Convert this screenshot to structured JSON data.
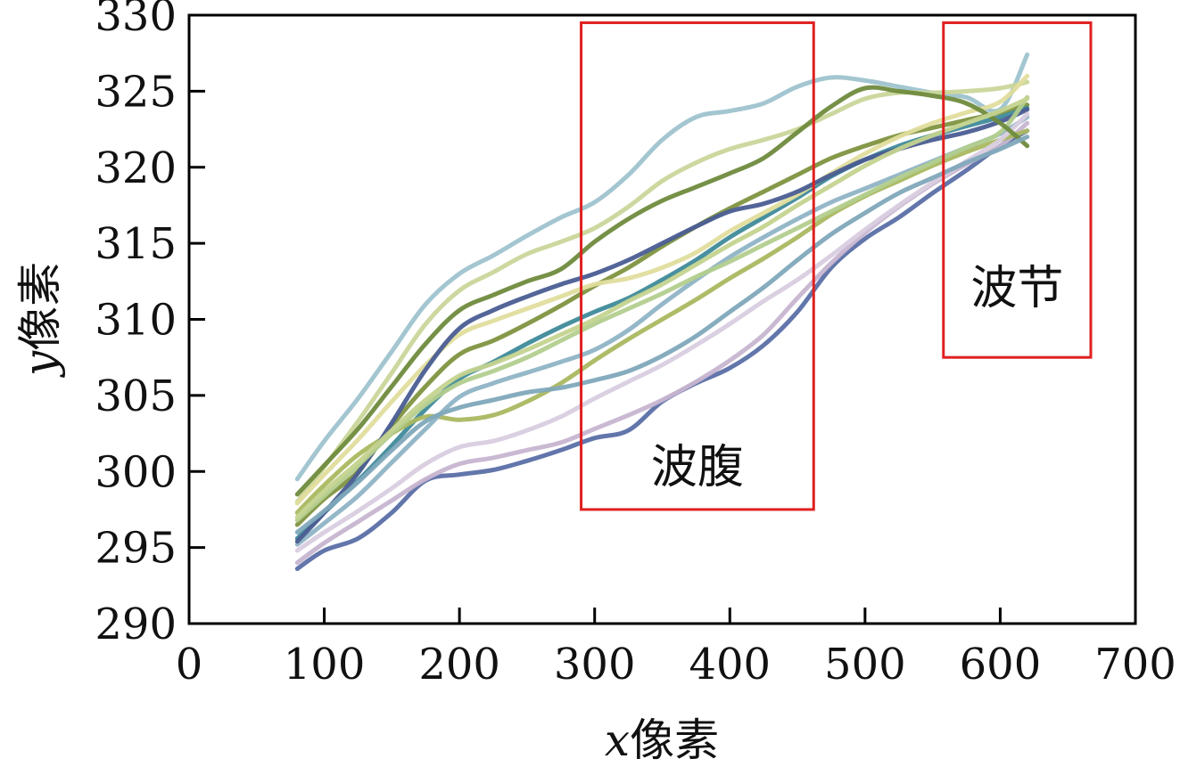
{
  "chart_data": {
    "type": "line",
    "title": "",
    "xlabel": {
      "symbol": "x",
      "text": "像素"
    },
    "ylabel": {
      "symbol": "y",
      "text": "像素"
    },
    "xlim": [
      0,
      700
    ],
    "ylim": [
      290,
      330
    ],
    "xticks": [
      0,
      100,
      200,
      300,
      400,
      500,
      600,
      700
    ],
    "yticks": [
      290,
      295,
      300,
      305,
      310,
      315,
      320,
      325,
      330
    ],
    "grid": false,
    "legend": "none",
    "x": [
      80,
      100,
      125,
      150,
      175,
      200,
      225,
      250,
      275,
      300,
      325,
      350,
      375,
      400,
      425,
      450,
      475,
      500,
      525,
      550,
      575,
      600,
      620
    ],
    "series": [
      {
        "color": "#9ec3cf",
        "values": [
          299.5,
          302.0,
          304.8,
          307.9,
          311.0,
          313.0,
          314.2,
          315.5,
          316.7,
          317.7,
          319.5,
          321.8,
          323.3,
          323.7,
          324.2,
          325.3,
          325.9,
          325.7,
          325.3,
          324.9,
          324.6,
          323.8,
          327.4
        ]
      },
      {
        "color": "#5a6fa6",
        "values": [
          293.6,
          294.8,
          295.6,
          297.3,
          299.4,
          299.8,
          300.1,
          300.7,
          301.4,
          302.2,
          302.7,
          304.6,
          305.8,
          306.8,
          308.3,
          310.5,
          313.4,
          315.3,
          316.7,
          318.3,
          319.8,
          321.4,
          322.4
        ]
      },
      {
        "color": "#7f9440",
        "values": [
          296.5,
          298.2,
          300.0,
          303.0,
          305.6,
          307.7,
          308.6,
          309.7,
          310.9,
          312.2,
          313.4,
          314.8,
          316.1,
          317.3,
          318.4,
          319.5,
          320.6,
          321.4,
          322.1,
          322.6,
          323.1,
          323.6,
          324.1
        ]
      },
      {
        "color": "#c9d69a",
        "values": [
          298.0,
          300.3,
          303.3,
          306.5,
          309.7,
          311.9,
          313.1,
          314.3,
          315.1,
          316.0,
          317.4,
          319.1,
          320.3,
          321.2,
          321.8,
          322.5,
          323.5,
          324.5,
          324.9,
          324.9,
          325.0,
          325.2,
          325.6
        ]
      },
      {
        "color": "#c7b5d0",
        "values": [
          294.0,
          295.3,
          296.7,
          298.1,
          299.5,
          300.5,
          300.9,
          301.4,
          301.9,
          302.8,
          303.7,
          304.7,
          305.9,
          307.3,
          309.0,
          311.4,
          313.7,
          315.7,
          317.4,
          318.9,
          320.2,
          321.4,
          322.9
        ]
      },
      {
        "color": "#3f8a9a",
        "values": [
          295.6,
          297.3,
          299.4,
          301.7,
          304.1,
          306.1,
          307.2,
          308.4,
          309.5,
          310.5,
          311.4,
          312.6,
          313.9,
          315.4,
          316.7,
          318.0,
          319.4,
          320.5,
          321.4,
          322.1,
          322.7,
          323.3,
          323.9
        ]
      },
      {
        "color": "#aab860",
        "values": [
          297.3,
          299.1,
          301.1,
          302.5,
          303.6,
          303.4,
          303.7,
          304.6,
          305.8,
          307.3,
          308.7,
          310.0,
          311.3,
          312.7,
          314.0,
          315.4,
          316.9,
          318.1,
          319.1,
          320.1,
          321.0,
          321.8,
          322.4
        ]
      },
      {
        "color": "#8fb4c6",
        "values": [
          295.2,
          296.6,
          298.4,
          300.6,
          302.8,
          304.9,
          305.8,
          306.5,
          307.2,
          308.0,
          309.3,
          311.0,
          312.6,
          314.1,
          315.4,
          316.6,
          317.7,
          318.6,
          319.5,
          320.4,
          321.3,
          322.2,
          323.3
        ]
      },
      {
        "color": "#e0dd9d",
        "values": [
          297.9,
          299.8,
          302.1,
          304.6,
          307.0,
          309.0,
          309.9,
          310.7,
          311.5,
          312.3,
          312.7,
          313.4,
          314.4,
          315.8,
          317.0,
          318.2,
          319.6,
          320.9,
          322.0,
          322.9,
          323.6,
          324.3,
          326.0
        ]
      },
      {
        "color": "#4a5d92",
        "values": [
          295.4,
          297.3,
          299.9,
          303.2,
          306.7,
          309.4,
          310.6,
          311.5,
          312.3,
          313.0,
          313.9,
          315.0,
          316.1,
          317.1,
          317.6,
          318.4,
          319.5,
          320.5,
          321.2,
          321.8,
          322.3,
          323.0,
          323.8
        ]
      },
      {
        "color": "#b3cd8e",
        "values": [
          296.8,
          298.4,
          300.4,
          302.5,
          304.4,
          305.8,
          306.6,
          307.5,
          308.6,
          309.7,
          310.7,
          311.7,
          312.8,
          313.8,
          314.9,
          316.0,
          317.1,
          318.2,
          319.3,
          320.3,
          321.3,
          322.3,
          324.6
        ]
      },
      {
        "color": "#d9cee0",
        "values": [
          294.8,
          296.0,
          297.4,
          298.9,
          300.5,
          301.6,
          302.0,
          302.7,
          303.6,
          304.8,
          305.9,
          307.0,
          308.3,
          309.7,
          311.2,
          312.6,
          314.2,
          315.9,
          317.5,
          319.0,
          320.4,
          321.8,
          323.5
        ]
      },
      {
        "color": "#6f8b3d",
        "values": [
          298.5,
          300.4,
          302.8,
          305.6,
          308.4,
          310.6,
          311.6,
          312.5,
          313.3,
          315.1,
          316.6,
          317.8,
          318.7,
          319.6,
          320.6,
          322.3,
          324.0,
          325.2,
          325.0,
          324.7,
          324.2,
          322.9,
          321.4
        ]
      },
      {
        "color": "#7fa8bb",
        "values": [
          296.0,
          297.4,
          299.3,
          301.4,
          303.3,
          304.2,
          304.7,
          305.2,
          305.5,
          306.0,
          306.6,
          307.6,
          308.9,
          310.5,
          312.1,
          313.9,
          315.6,
          317.0,
          318.3,
          319.3,
          320.3,
          321.2,
          322.0
        ]
      },
      {
        "color": "#c4d38f",
        "values": [
          297.0,
          298.7,
          300.6,
          302.7,
          304.7,
          306.3,
          307.1,
          308.0,
          309.0,
          310.0,
          311.2,
          312.3,
          313.6,
          314.9,
          316.1,
          317.5,
          318.8,
          320.1,
          321.2,
          322.1,
          322.9,
          323.7,
          324.5
        ]
      }
    ],
    "annotations": [
      {
        "label": "波腹",
        "x_range": [
          290,
          462
        ],
        "y_range": [
          297.5,
          329.5
        ]
      },
      {
        "label": "波节",
        "x_range": [
          558,
          667
        ],
        "y_range": [
          307.5,
          329.5
        ]
      }
    ]
  }
}
